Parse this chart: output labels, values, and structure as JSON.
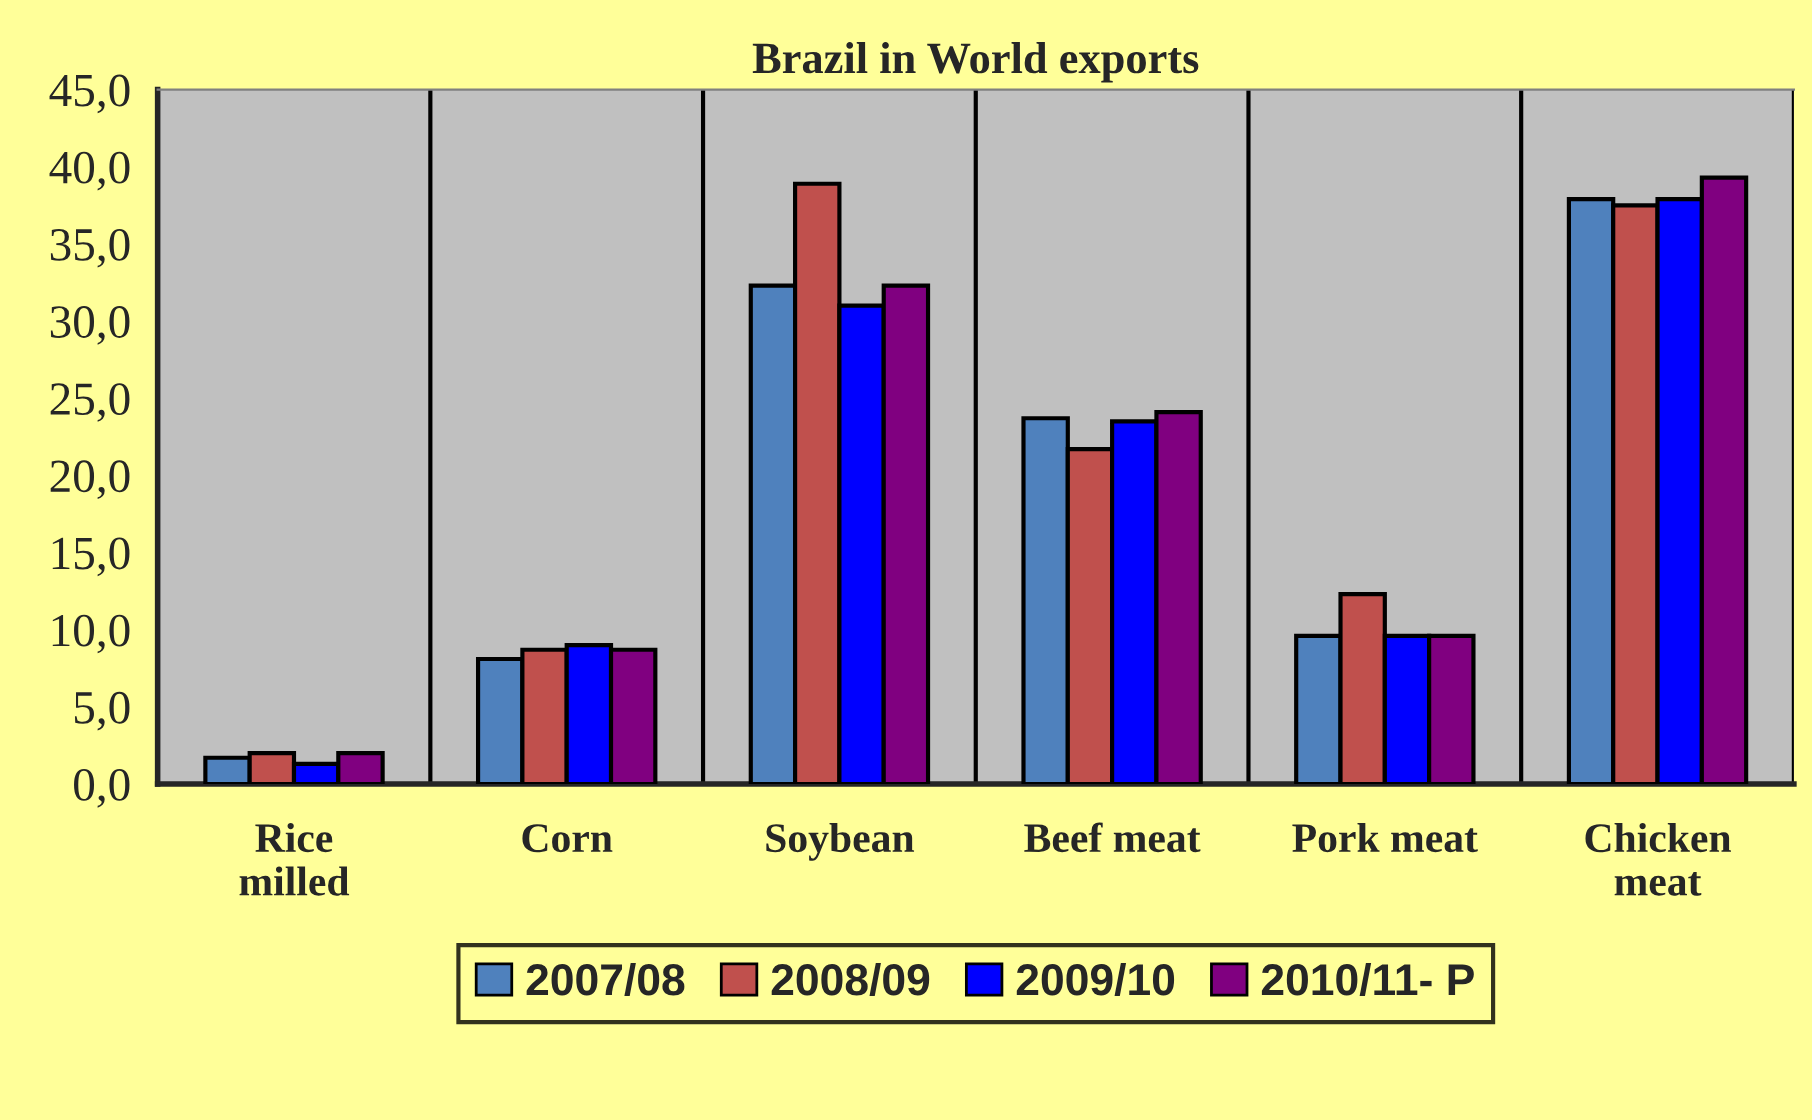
{
  "chart_data": {
    "type": "bar",
    "title": "Brazil in World exports",
    "categories": [
      "Rice\nmilled",
      "Corn",
      "Soybean",
      "Beef meat",
      "Pork meat",
      "Chicken\nmeat"
    ],
    "series": [
      {
        "name": "2007/08",
        "color": "#4f81bd",
        "values": [
          1.7,
          8.1,
          32.3,
          23.7,
          9.6,
          37.9
        ]
      },
      {
        "name": "2008/09",
        "color": "#c0504d",
        "values": [
          2.0,
          8.7,
          38.9,
          21.7,
          12.3,
          37.5
        ]
      },
      {
        "name": "2009/10",
        "color": "#0000ff",
        "values": [
          1.3,
          9.0,
          31.0,
          23.5,
          9.6,
          37.9
        ]
      },
      {
        "name": "2010/11- P",
        "color": "#800080",
        "values": [
          2.0,
          8.7,
          32.3,
          24.1,
          9.6,
          39.3
        ]
      }
    ],
    "ylim": [
      0,
      45
    ],
    "yticks": [
      {
        "value": 0,
        "label": "0,0"
      },
      {
        "value": 5,
        "label": "5,0"
      },
      {
        "value": 10,
        "label": "10,0"
      },
      {
        "value": 15,
        "label": "15,0"
      },
      {
        "value": 20,
        "label": "20,0"
      },
      {
        "value": 25,
        "label": "25,0"
      },
      {
        "value": 30,
        "label": "30,0"
      },
      {
        "value": 35,
        "label": "35,0"
      },
      {
        "value": 40,
        "label": "40,0"
      },
      {
        "value": 45,
        "label": "45,0"
      }
    ],
    "grid": "x",
    "legend": "bottom"
  }
}
